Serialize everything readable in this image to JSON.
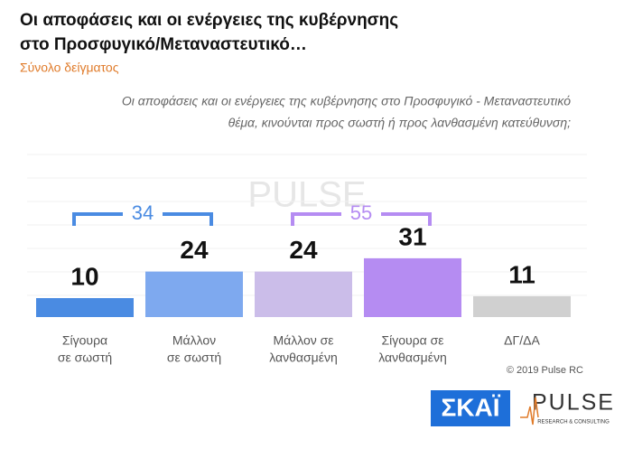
{
  "chart_data": {
    "type": "bar",
    "title": [
      "Οι αποφάσεις και οι ενέργειες της κυβέρνησης",
      "στο Προσφυγικό/Μεταναστευτικό…"
    ],
    "subtitle": "Σύνολο δείγματος",
    "question": [
      "Οι αποφάσεις και οι ενέργειες της κυβέρνησης στο Προσφυγικό - Μεταναστευτικό",
      "θέμα, κινούνται προς σωστή ή προς λανθασμένη κατεύθυνση;"
    ],
    "categories": [
      [
        "Σίγουρα",
        "σε σωστή"
      ],
      [
        "Μάλλον",
        "σε σωστή"
      ],
      [
        "Μάλλον σε",
        "λανθασμένη"
      ],
      [
        "Σίγουρα σε",
        "λανθασμένη"
      ],
      [
        "ΔΓ/ΔΑ"
      ]
    ],
    "values": [
      10,
      24,
      24,
      31,
      11
    ],
    "colors": [
      "#4a8be2",
      "#7ea9ef",
      "#cbbde9",
      "#b58cf2",
      "#d0d0d0"
    ],
    "brackets": [
      {
        "value": 34,
        "color": "#4a8be2"
      },
      {
        "value": 55,
        "color": "#b58cf2"
      }
    ],
    "grid": true,
    "copyright": "© 2019 Pulse RC",
    "logo_left": "ΣΚΑΪ",
    "logo_right": "PULSE",
    "logo_right_sub": "RESEARCH & CONSULTING"
  }
}
